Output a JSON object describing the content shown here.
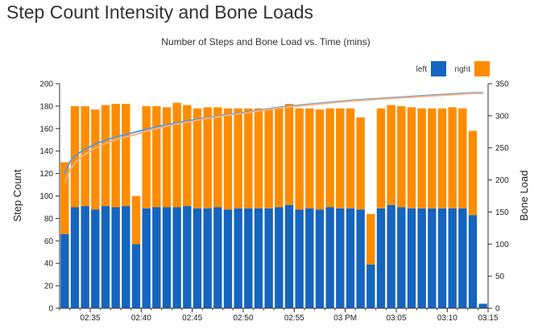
{
  "page": {
    "title": "Step Count Intensity and Bone Loads"
  },
  "colors": {
    "left": "#1565C0",
    "right": "#FF8C00",
    "left_line": "#5B9BD5",
    "right_line": "#F4B183",
    "axis": "#333333",
    "grid": "#dddddd"
  },
  "chart_data": {
    "type": "bar",
    "title": "Number of Steps and Bone Load vs. Time (mins)",
    "ylabel": "Step Count",
    "y2label": "Bone Load",
    "ylim": [
      0,
      200
    ],
    "y2lim": [
      0,
      350
    ],
    "yticks": [
      0,
      20,
      40,
      60,
      80,
      100,
      120,
      140,
      160,
      180,
      200
    ],
    "y2ticks": [
      0,
      50,
      100,
      150,
      200,
      250,
      300,
      350
    ],
    "xticks": [
      "02:35",
      "02:40",
      "02:45",
      "02:50",
      "02:55",
      "03 PM",
      "03:05",
      "03:10",
      "03:15"
    ],
    "x_first_tick_index": 3,
    "minutes_per_tick": 5,
    "stacked": true,
    "legend": {
      "position": "top-right"
    },
    "grid": false,
    "series": [
      {
        "name": "left",
        "color": "#1565C0",
        "values": [
          66,
          90,
          91,
          88,
          91,
          90,
          91,
          57,
          89,
          90,
          90,
          90,
          91,
          89,
          89,
          90,
          88,
          89,
          89,
          89,
          89,
          90,
          92,
          88,
          89,
          88,
          90,
          89,
          89,
          88,
          39,
          89,
          92,
          90,
          89,
          89,
          89,
          89,
          89,
          89,
          83,
          4
        ]
      },
      {
        "name": "right",
        "color": "#FF8C00",
        "values": [
          64,
          90,
          89,
          89,
          90,
          92,
          91,
          43,
          91,
          90,
          89,
          93,
          90,
          89,
          90,
          89,
          90,
          89,
          89,
          89,
          88,
          89,
          90,
          90,
          89,
          89,
          88,
          89,
          89,
          82,
          45,
          89,
          89,
          90,
          90,
          89,
          89,
          89,
          90,
          89,
          75,
          0
        ]
      }
    ],
    "lines": [
      {
        "name": "left",
        "axis": "y2",
        "color": "#5B9BD5",
        "x": [
          0,
          0.5,
          1,
          1.5,
          2,
          3,
          4,
          5,
          6,
          7,
          8,
          9,
          10,
          12,
          14,
          16,
          18,
          20,
          22,
          24,
          26,
          28,
          30,
          32,
          34,
          36,
          38,
          40,
          41
        ],
        "values": [
          210,
          228,
          237,
          243,
          248,
          256,
          262,
          267,
          271,
          275,
          279,
          283,
          286,
          292,
          297,
          302,
          306,
          311,
          315,
          318,
          321,
          324,
          326,
          328,
          330,
          332,
          334,
          336,
          336
        ]
      },
      {
        "name": "right",
        "axis": "y2",
        "color": "#F4B183",
        "x": [
          0,
          0.5,
          1,
          1.5,
          2,
          3,
          4,
          5,
          6,
          7,
          8,
          9,
          10,
          12,
          14,
          16,
          18,
          20,
          22,
          24,
          26,
          28,
          30,
          32,
          34,
          36,
          38,
          40,
          41
        ],
        "values": [
          195,
          215,
          226,
          234,
          240,
          250,
          257,
          263,
          267,
          271,
          276,
          280,
          284,
          290,
          296,
          301,
          305,
          310,
          314,
          317,
          320,
          323,
          325,
          327,
          329,
          331,
          333,
          335,
          335
        ]
      }
    ]
  }
}
